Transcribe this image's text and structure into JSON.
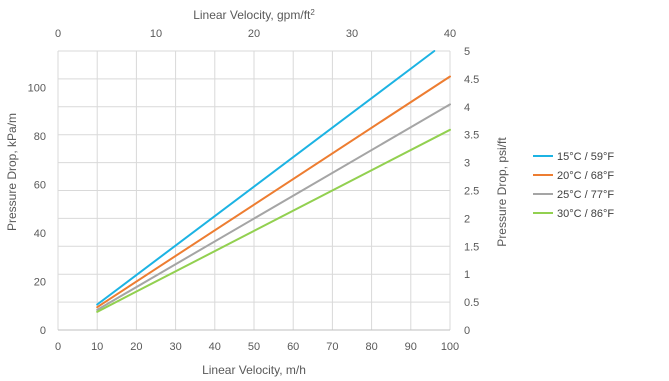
{
  "chart_data": {
    "type": "line",
    "xlabel": "Linear Velocity, m/h",
    "ylabel": "Pressure Drop, kPa/m",
    "x2label_text": "Linear Velocity, gpm/ft",
    "x2label_sup": "2",
    "y2label": "Pressure Drop, psi/ft",
    "xlim": [
      0,
      100
    ],
    "ylim": [
      0,
      115
    ],
    "xticks": [
      0,
      10,
      20,
      30,
      40,
      50,
      60,
      70,
      80,
      90,
      100
    ],
    "yticks": [
      0,
      20,
      40,
      60,
      80,
      100
    ],
    "x2lim": [
      0,
      40
    ],
    "x2ticks": [
      0,
      10,
      20,
      30,
      40
    ],
    "y2lim": [
      0,
      5
    ],
    "y2ticks": [
      "0",
      "0.5",
      "1",
      "1.5",
      "2",
      "2.5",
      "3",
      "3.5",
      "4",
      "4.5",
      "5"
    ],
    "grid": true,
    "legend_position": "right",
    "series": [
      {
        "name": "15°C / 59°F",
        "color": "#1CB3E3",
        "x": [
          10,
          96
        ],
        "y": [
          10.5,
          115
        ]
      },
      {
        "name": "20°C / 68°F",
        "color": "#ED7D31",
        "x": [
          10,
          100
        ],
        "y": [
          9.4,
          104.5
        ]
      },
      {
        "name": "25°C / 77°F",
        "color": "#A5A5A5",
        "x": [
          10,
          100
        ],
        "y": [
          8.3,
          93
        ]
      },
      {
        "name": "30°C / 86°F",
        "color": "#92D050",
        "x": [
          10,
          100
        ],
        "y": [
          7.5,
          82.5
        ]
      }
    ]
  }
}
